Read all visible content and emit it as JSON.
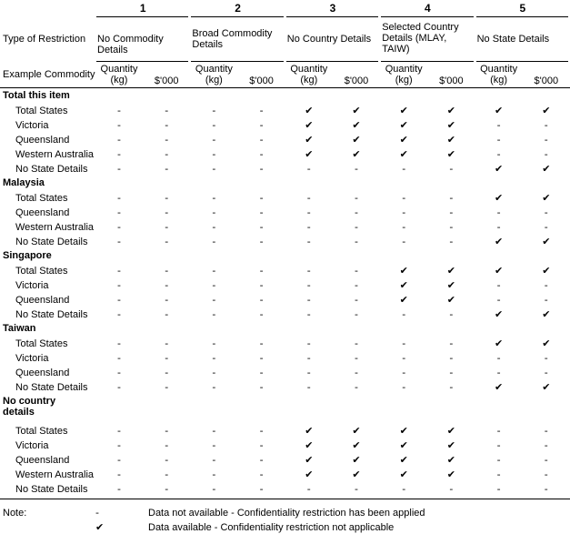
{
  "header": {
    "column_numbers": [
      "1",
      "2",
      "3",
      "4",
      "5"
    ],
    "restriction_label": "Type of Restriction",
    "restrictions": [
      "No Commodity Details",
      "Broad Commodity Details",
      "No Country Details",
      "Selected Country Details (MLAY, TAIW)",
      "No State Details"
    ],
    "commodity_label": "Example Commodity",
    "units": [
      "Quantity (kg)",
      "$'000"
    ]
  },
  "sections": [
    {
      "name": "Total this item",
      "rows": [
        {
          "label": "Total States",
          "cells": [
            "-",
            "-",
            "-",
            "-",
            "✔",
            "✔",
            "✔",
            "✔",
            "✔",
            "✔"
          ]
        },
        {
          "label": "Victoria",
          "cells": [
            "-",
            "-",
            "-",
            "-",
            "✔",
            "✔",
            "✔",
            "✔",
            "-",
            "-"
          ]
        },
        {
          "label": "Queensland",
          "cells": [
            "-",
            "-",
            "-",
            "-",
            "✔",
            "✔",
            "✔",
            "✔",
            "-",
            "-"
          ]
        },
        {
          "label": "Western Australia",
          "cells": [
            "-",
            "-",
            "-",
            "-",
            "✔",
            "✔",
            "✔",
            "✔",
            "-",
            "-"
          ]
        },
        {
          "label": "No State Details",
          "cells": [
            "-",
            "-",
            "-",
            "-",
            "-",
            "-",
            "-",
            "-",
            "✔",
            "✔"
          ]
        }
      ]
    },
    {
      "name": "Malaysia",
      "rows": [
        {
          "label": "Total States",
          "cells": [
            "-",
            "-",
            "-",
            "-",
            "-",
            "-",
            "-",
            "-",
            "✔",
            "✔"
          ]
        },
        {
          "label": "Queensland",
          "cells": [
            "-",
            "-",
            "-",
            "-",
            "-",
            "-",
            "-",
            "-",
            "-",
            "-"
          ]
        },
        {
          "label": "Western Australia",
          "cells": [
            "-",
            "-",
            "-",
            "-",
            "-",
            "-",
            "-",
            "-",
            "-",
            "-"
          ]
        },
        {
          "label": "No State Details",
          "cells": [
            "-",
            "-",
            "-",
            "-",
            "-",
            "-",
            "-",
            "-",
            "✔",
            "✔"
          ]
        }
      ]
    },
    {
      "name": "Singapore",
      "rows": [
        {
          "label": "Total States",
          "cells": [
            "-",
            "-",
            "-",
            "-",
            "-",
            "-",
            "✔",
            "✔",
            "✔",
            "✔"
          ]
        },
        {
          "label": "Victoria",
          "cells": [
            "-",
            "-",
            "-",
            "-",
            "-",
            "-",
            "✔",
            "✔",
            "-",
            "-"
          ]
        },
        {
          "label": "Queensland",
          "cells": [
            "-",
            "-",
            "-",
            "-",
            "-",
            "-",
            "✔",
            "✔",
            "-",
            "-"
          ]
        },
        {
          "label": "No State Details",
          "cells": [
            "-",
            "-",
            "-",
            "-",
            "-",
            "-",
            "-",
            "-",
            "✔",
            "✔"
          ]
        }
      ]
    },
    {
      "name": "Taiwan",
      "rows": [
        {
          "label": "Total States",
          "cells": [
            "-",
            "-",
            "-",
            "-",
            "-",
            "-",
            "-",
            "-",
            "✔",
            "✔"
          ]
        },
        {
          "label": "Victoria",
          "cells": [
            "-",
            "-",
            "-",
            "-",
            "-",
            "-",
            "-",
            "-",
            "-",
            "-"
          ]
        },
        {
          "label": "Queensland",
          "cells": [
            "-",
            "-",
            "-",
            "-",
            "-",
            "-",
            "-",
            "-",
            "-",
            "-"
          ]
        },
        {
          "label": "No State Details",
          "cells": [
            "-",
            "-",
            "-",
            "-",
            "-",
            "-",
            "-",
            "-",
            "✔",
            "✔"
          ]
        }
      ]
    },
    {
      "name": "No country details",
      "rows": [
        {
          "label": "Total States",
          "cells": [
            "-",
            "-",
            "-",
            "-",
            "✔",
            "✔",
            "✔",
            "✔",
            "-",
            "-"
          ]
        },
        {
          "label": "Victoria",
          "cells": [
            "-",
            "-",
            "-",
            "-",
            "✔",
            "✔",
            "✔",
            "✔",
            "-",
            "-"
          ]
        },
        {
          "label": "Queensland",
          "cells": [
            "-",
            "-",
            "-",
            "-",
            "✔",
            "✔",
            "✔",
            "✔",
            "-",
            "-"
          ]
        },
        {
          "label": "Western Australia",
          "cells": [
            "-",
            "-",
            "-",
            "-",
            "✔",
            "✔",
            "✔",
            "✔",
            "-",
            "-"
          ]
        },
        {
          "label": "No State Details",
          "cells": [
            "-",
            "-",
            "-",
            "-",
            "-",
            "-",
            "-",
            "-",
            "-",
            "-"
          ]
        }
      ]
    }
  ],
  "notes": {
    "label": "Note:",
    "items": [
      {
        "symbol": "-",
        "text": "Data not available - Confidentiality restriction has been applied"
      },
      {
        "symbol": "✔",
        "text": "Data available - Confidentiality restriction not applicable"
      }
    ]
  }
}
